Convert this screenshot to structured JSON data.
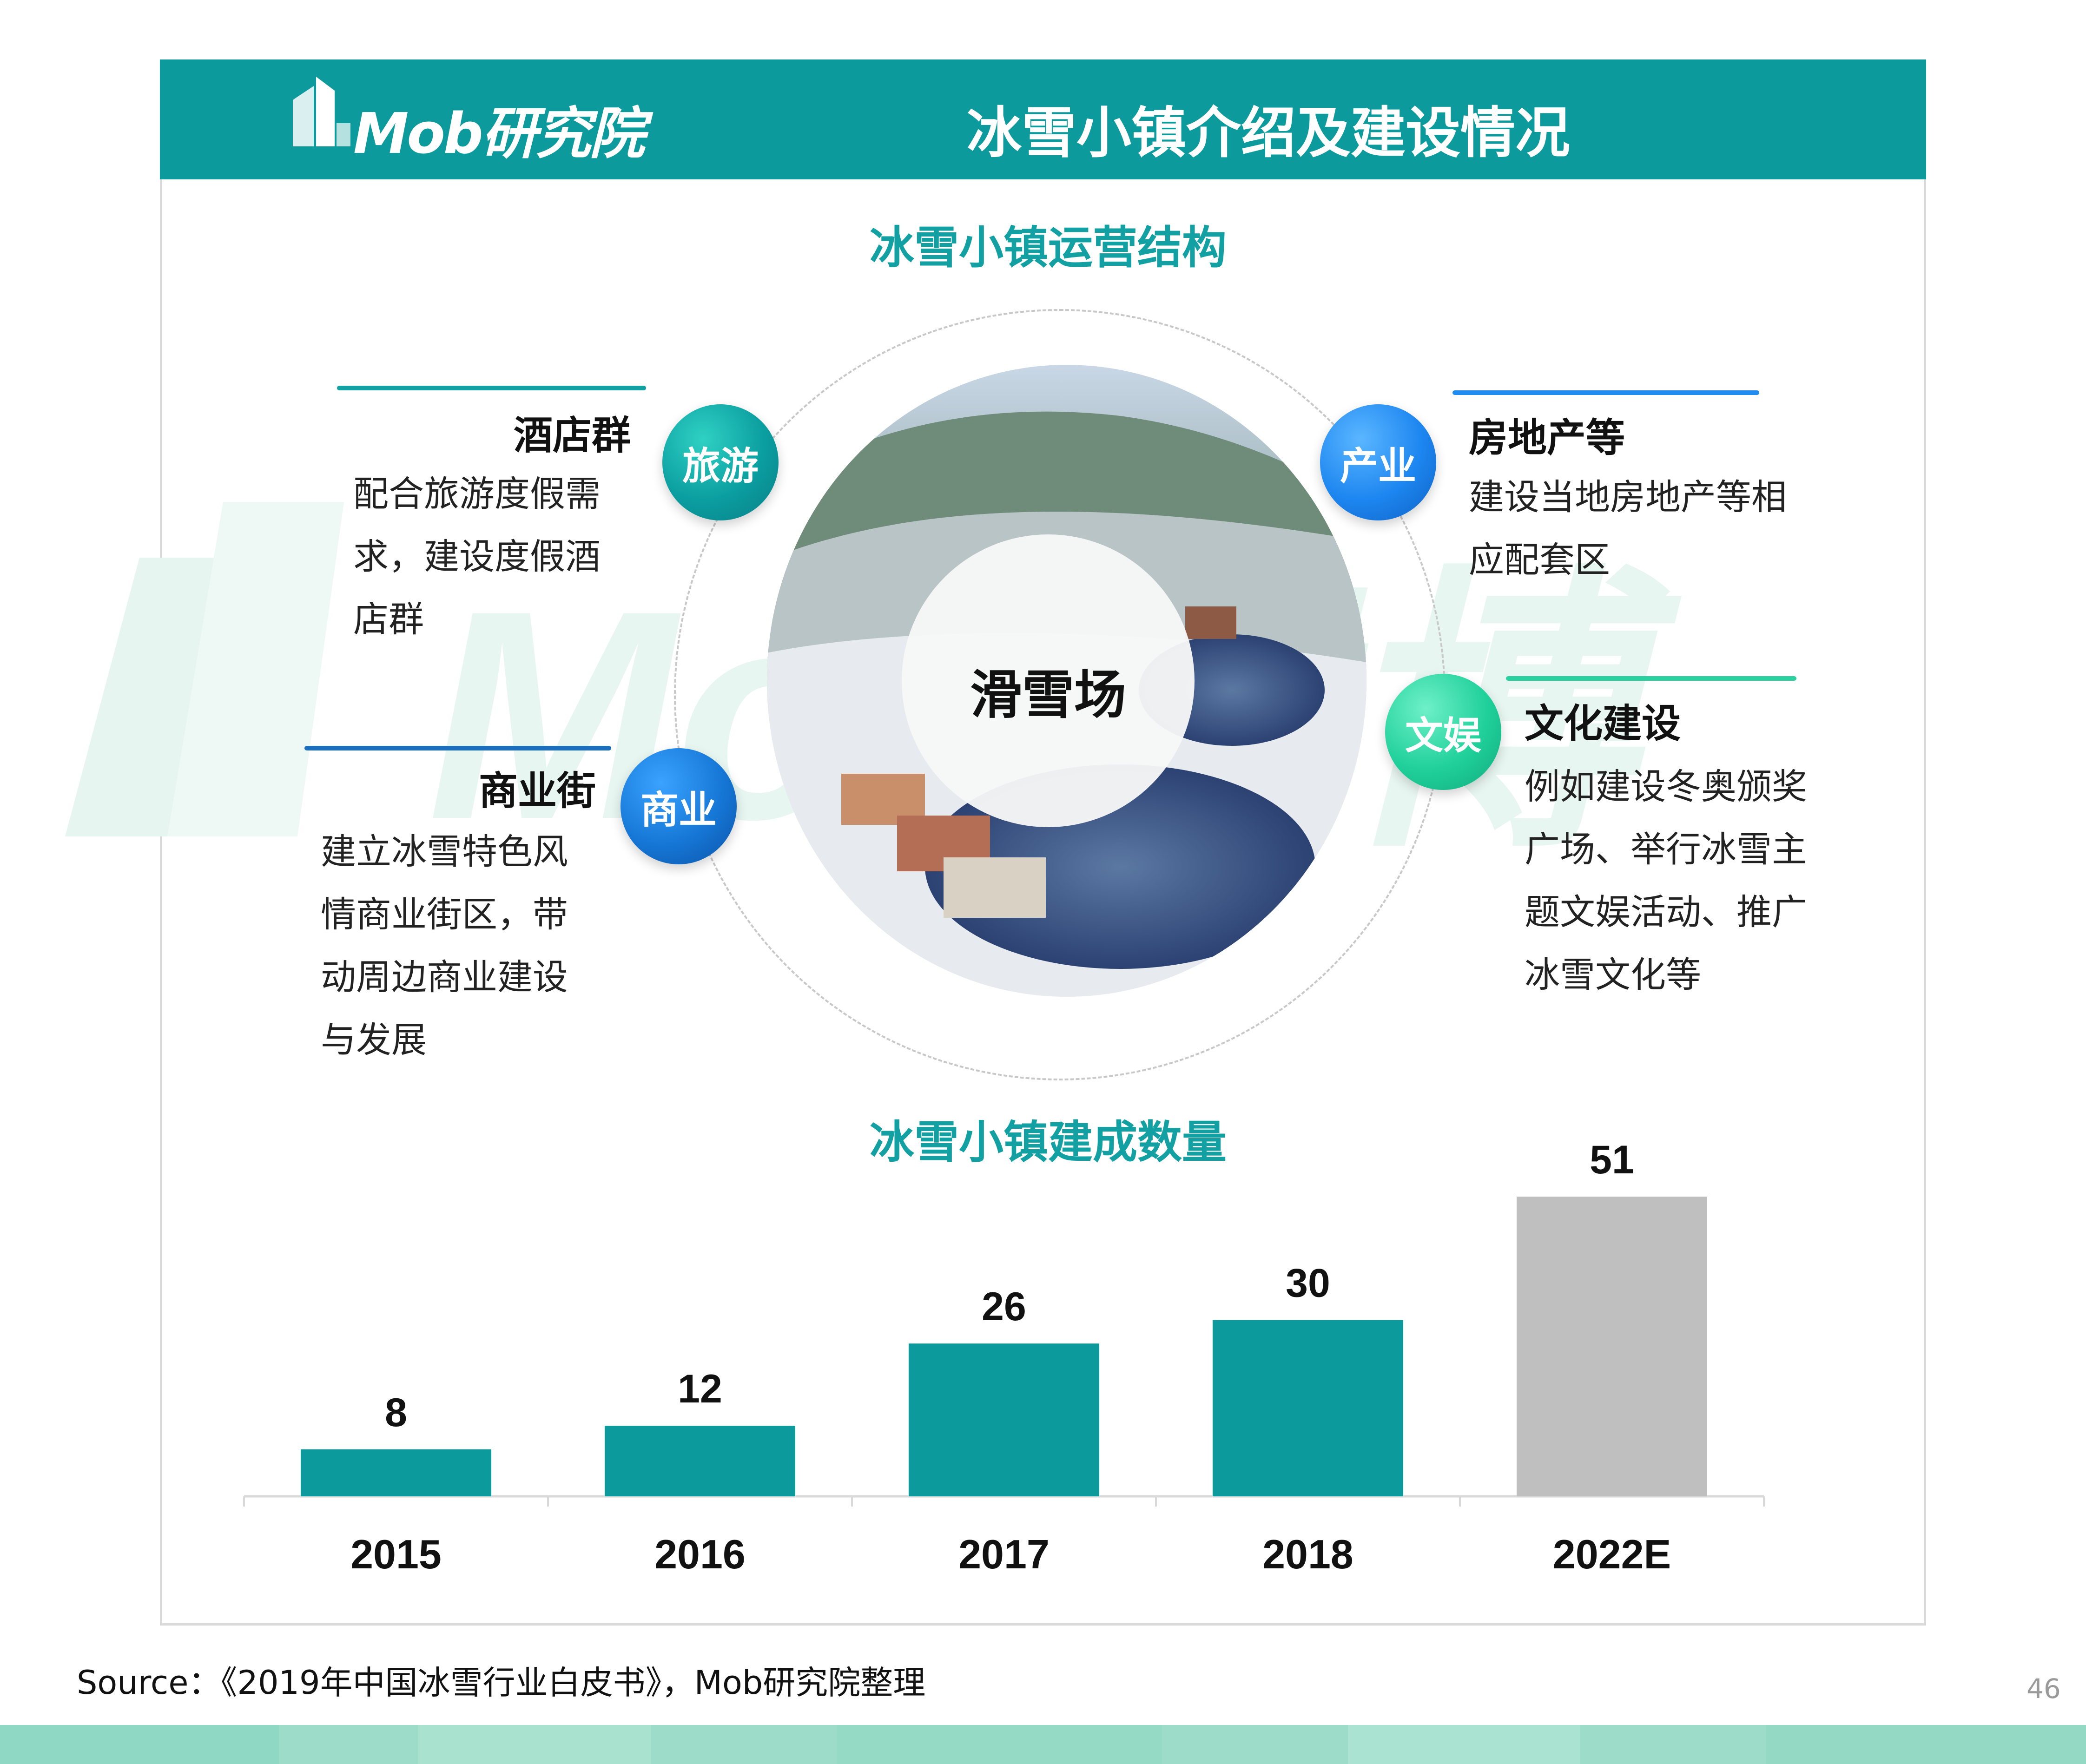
{
  "header": {
    "logo_text": "Mob研究院",
    "title": "冰雪小镇介绍及建设情况"
  },
  "watermark": {
    "text": "Mob竞博"
  },
  "structure": {
    "title": "冰雪小镇运营结构",
    "center_label": "滑雪场",
    "nodes": [
      {
        "label": "旅游",
        "block_title": "酒店群",
        "lines": [
          "配合旅游度假需",
          "求，建设度假酒",
          "店群"
        ]
      },
      {
        "label": "商业",
        "block_title": "商业街",
        "lines": [
          "建立冰雪特色风",
          "情商业街区，带",
          "动周边商业建设",
          "与发展"
        ]
      },
      {
        "label": "产业",
        "block_title": "房地产等",
        "lines": [
          "建设当地房地产等相",
          "应配套区"
        ]
      },
      {
        "label": "文娱",
        "block_title": "文化建设",
        "lines": [
          "例如建设冬奥颁奖",
          "广场、举行冰雪主",
          "题文娱活动、推广",
          "冰雪文化等"
        ]
      }
    ]
  },
  "chart_data": {
    "type": "bar",
    "title": "冰雪小镇建成数量",
    "categories": [
      "2015",
      "2016",
      "2017",
      "2018",
      "2022E"
    ],
    "values": [
      8,
      12,
      26,
      30,
      51
    ],
    "colors": [
      "#0d9a9c",
      "#0d9a9c",
      "#0d9a9c",
      "#0d9a9c",
      "#bfbfbf"
    ],
    "ylim": [
      0,
      51
    ],
    "grid": false,
    "legend": "none"
  },
  "source": "Source：《2019年中国冰雪行业白皮书》，Mob研究院整理",
  "page_number": "46",
  "colors": {
    "brand_teal": "#0d9a9c",
    "title_teal": "#12a0a2",
    "forecast_grey": "#bfbfbf",
    "band_mint": "#8fd9c2"
  }
}
